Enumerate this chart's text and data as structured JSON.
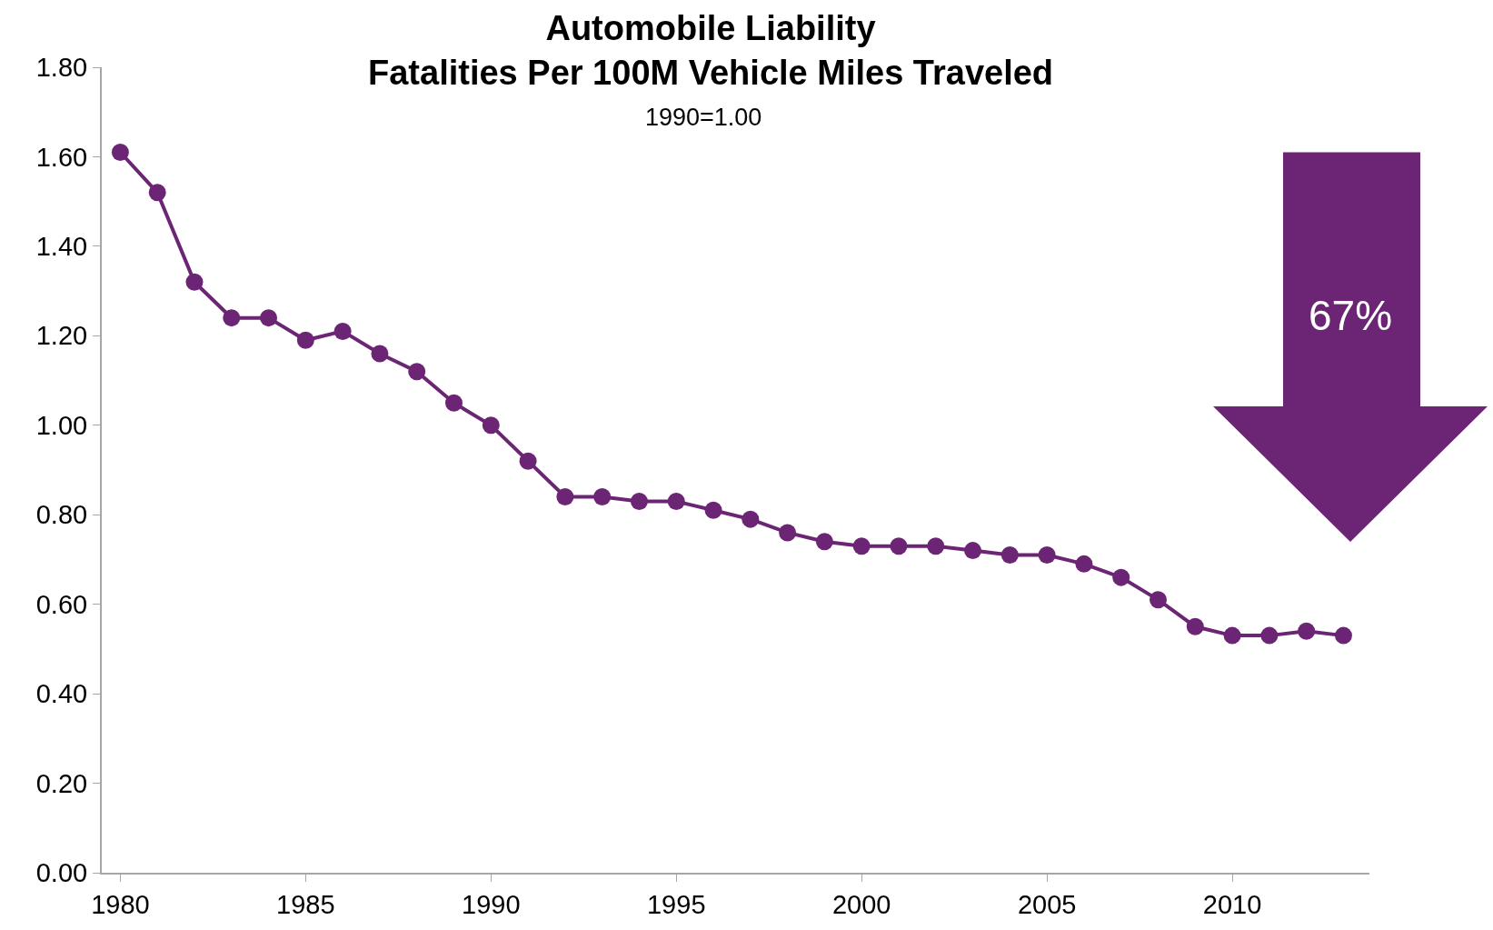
{
  "chart_data": {
    "type": "line",
    "title": "Automobile Liability\nFatalities Per 100M Vehicle Miles Traveled",
    "subtitle": "1990=1.00",
    "categories": [
      "1980",
      null,
      null,
      null,
      null,
      "1985",
      null,
      null,
      null,
      null,
      "1990",
      null,
      null,
      null,
      null,
      "1995",
      null,
      null,
      null,
      null,
      "2000",
      null,
      null,
      null,
      null,
      "2005",
      null,
      null,
      null,
      null,
      "2010",
      null,
      null,
      null
    ],
    "series": [
      {
        "color": "#6b2574",
        "values": [
          1.61,
          1.52,
          1.32,
          1.24,
          1.24,
          1.19,
          1.21,
          1.16,
          1.12,
          1.05,
          1.0,
          0.92,
          0.84,
          0.84,
          0.83,
          0.83,
          0.81,
          0.79,
          0.76,
          0.74,
          0.73,
          0.73,
          0.73,
          0.72,
          0.71,
          0.71,
          0.69,
          0.66,
          0.61,
          0.55,
          0.53,
          0.53,
          0.54,
          0.53
        ]
      }
    ],
    "ylim": [
      0,
      1.8
    ],
    "yticks": [
      {
        "value": 0,
        "label": "0.00"
      },
      {
        "value": 0.2,
        "label": "0.20"
      },
      {
        "value": 0.4,
        "label": "0.40"
      },
      {
        "value": 0.6,
        "label": "0.60"
      },
      {
        "value": 0.8,
        "label": "0.80"
      },
      {
        "value": 1.0,
        "label": "1.00"
      },
      {
        "value": 1.2,
        "label": "1.20"
      },
      {
        "value": 1.4,
        "label": "1.40"
      },
      {
        "value": 1.6,
        "label": "1.60"
      },
      {
        "value": 1.8,
        "label": "1.80"
      }
    ],
    "annotations": [
      "67%"
    ],
    "marker": "circle",
    "line_style": "solid"
  }
}
